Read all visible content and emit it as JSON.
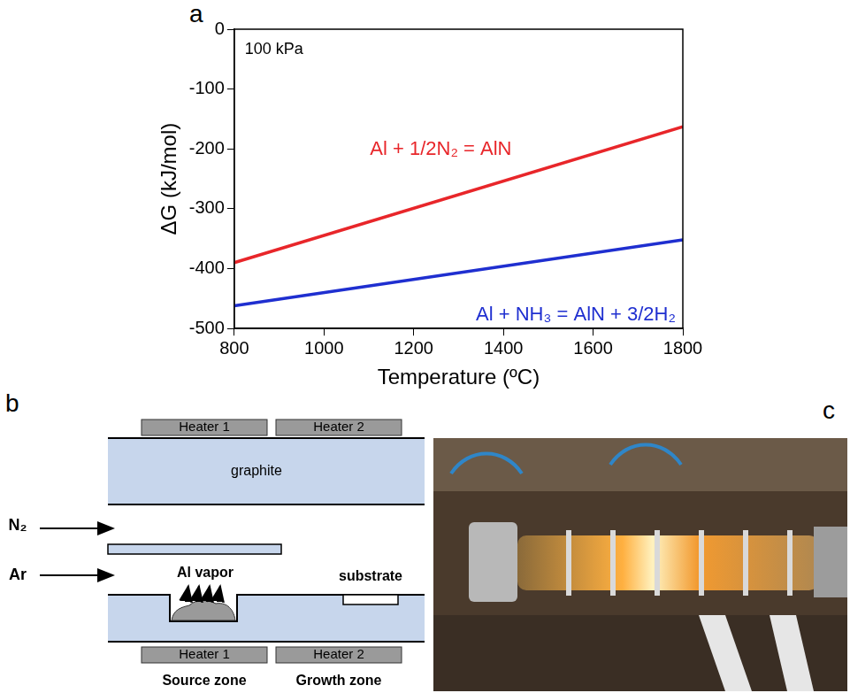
{
  "panel_labels": [
    "a",
    "b",
    "c"
  ],
  "chart_data": {
    "type": "line",
    "annotation": "100 kPa",
    "x_label": "Temperature (ºC)",
    "y_label": "ΔG (kJ/mol)",
    "x": [
      800,
      1800
    ],
    "xlim": [
      800,
      1800
    ],
    "xticks": [
      800,
      1000,
      1200,
      1400,
      1600,
      1800
    ],
    "ylim": [
      -500,
      0
    ],
    "yticks": [
      -500,
      -400,
      -300,
      -200,
      -100,
      0
    ],
    "grid": false,
    "series": [
      {
        "name": "Al + 1/2N₂ = AlN",
        "color": "#e8262a",
        "values": [
          -390,
          -163
        ]
      },
      {
        "name": "Al + NH₃ = AlN + 3/2H₂",
        "color": "#1f2fd0",
        "values": [
          -462,
          -352
        ]
      }
    ]
  },
  "diagram": {
    "heaters_top": [
      "Heater 1",
      "Heater 2"
    ],
    "wall": "graphite",
    "gas_inlets": [
      "N₂",
      "Ar"
    ],
    "source": "Al vapor",
    "sample": "substrate",
    "heaters_bottom": [
      "Heater 1",
      "Heater 2"
    ],
    "zones": [
      "Source zone",
      "Growth zone"
    ]
  }
}
